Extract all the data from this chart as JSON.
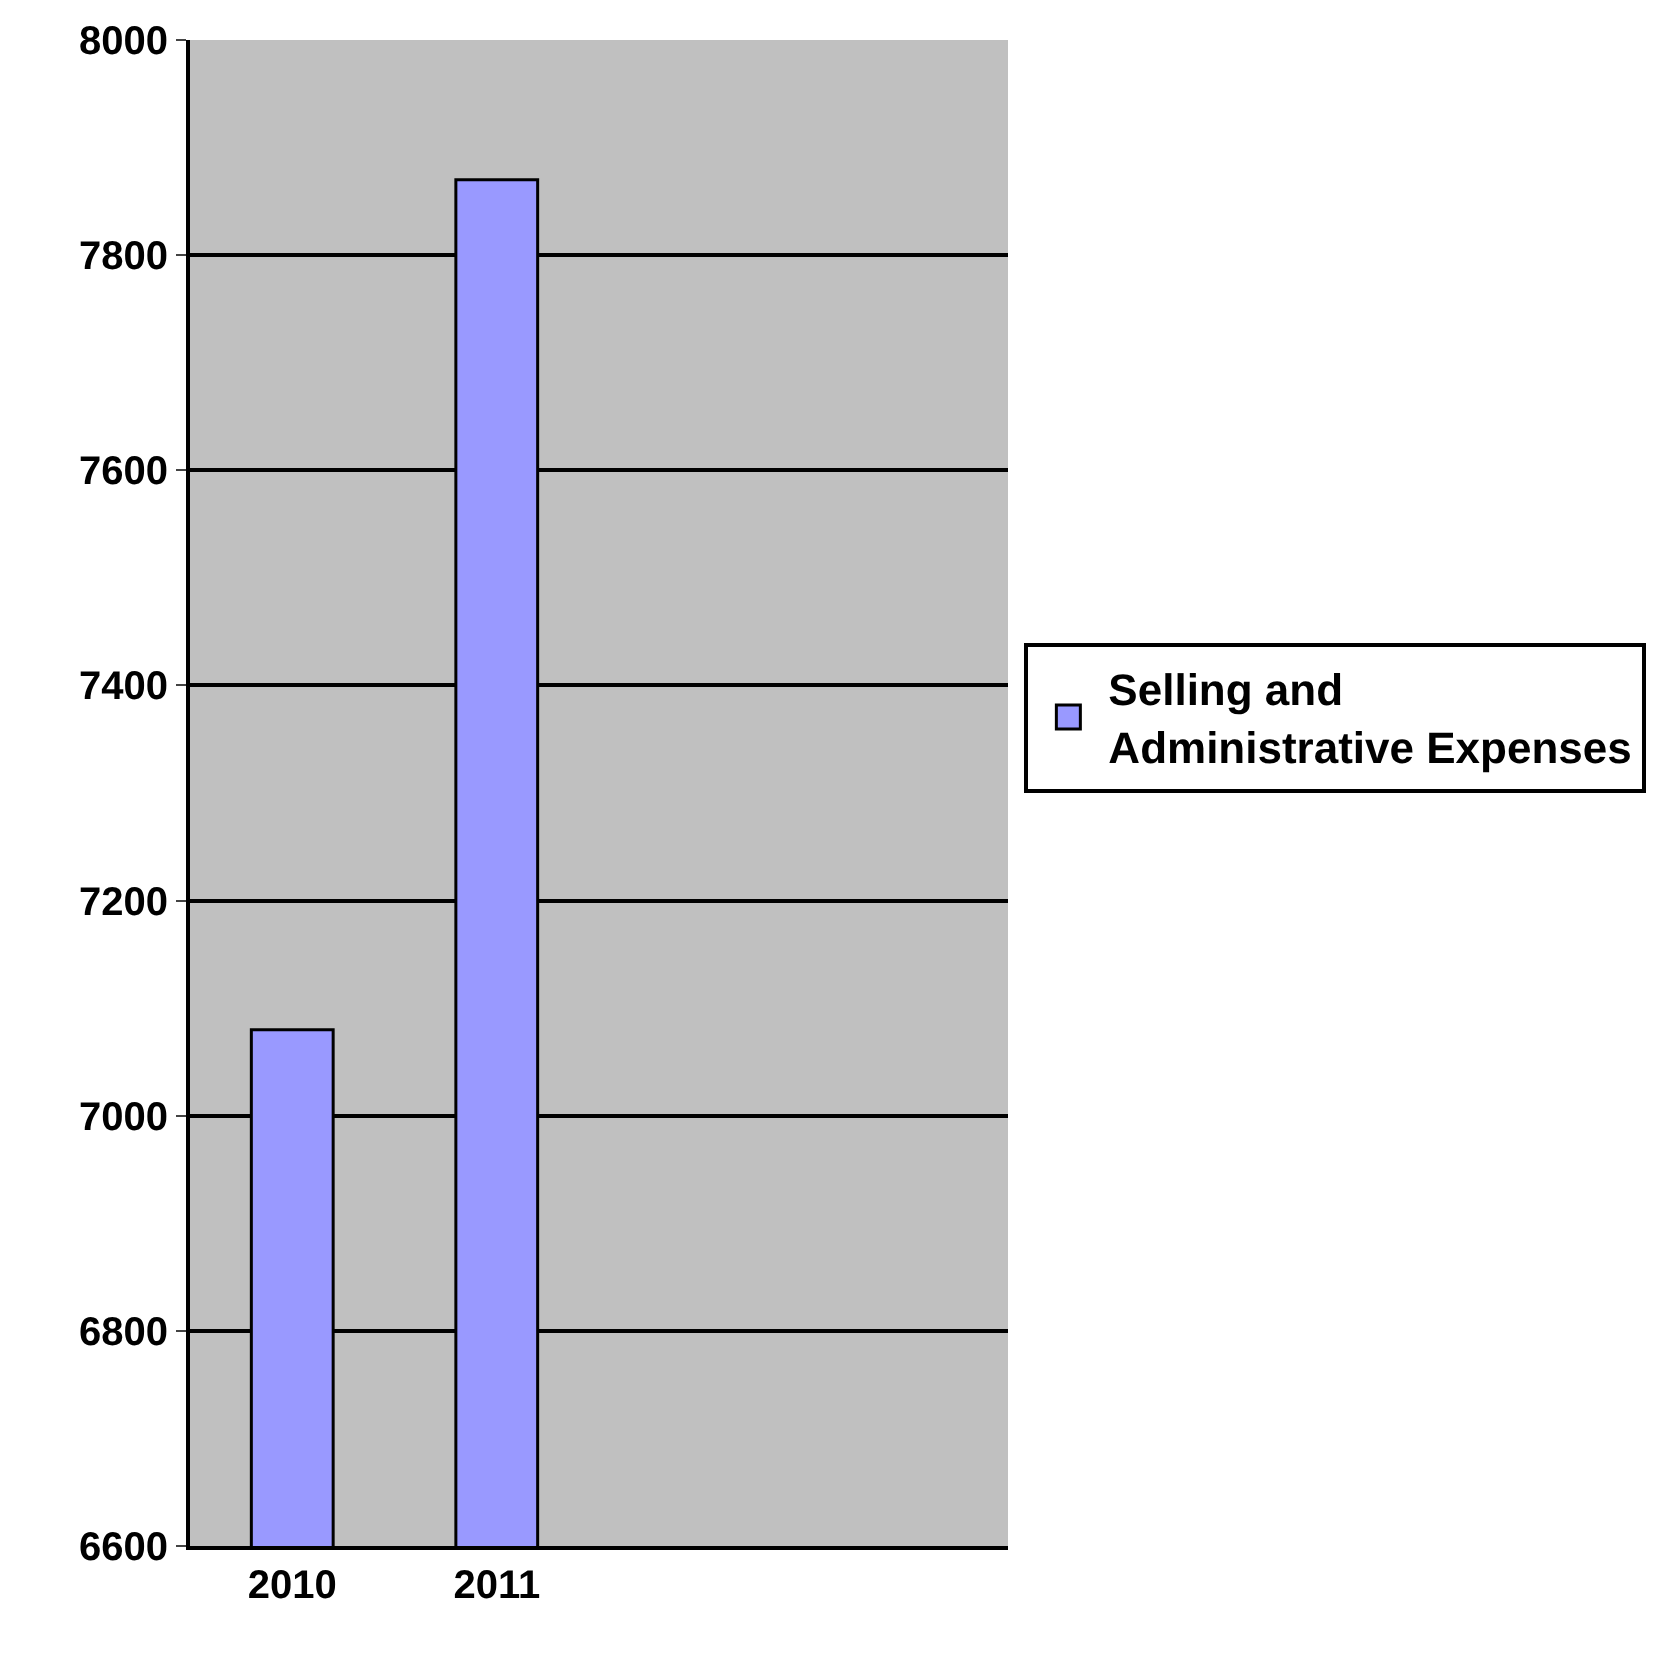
{
  "chart_data": {
    "type": "bar",
    "categories": [
      "2010",
      "2011",
      null,
      null
    ],
    "series": [
      {
        "name": "Selling and Administrative Expenses",
        "color": "#9999ff",
        "values": [
          7080,
          7870,
          null,
          null
        ]
      }
    ],
    "ylim": [
      6600,
      8000
    ],
    "yticks": [
      6600,
      6800,
      7000,
      7200,
      7400,
      7600,
      7800,
      8000
    ],
    "grid": "y",
    "legend": "right"
  }
}
